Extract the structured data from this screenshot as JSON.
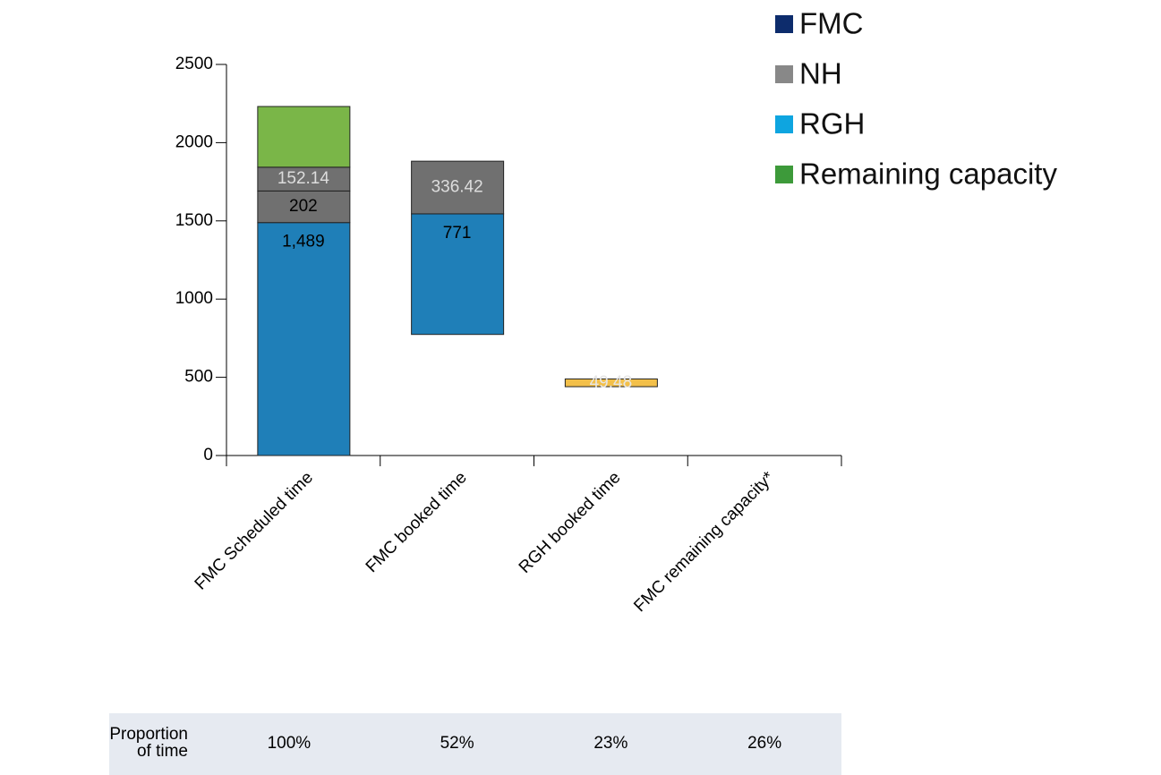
{
  "chart_data": {
    "type": "floating_stacked_bar",
    "categories": [
      "FMC Scheduled time",
      "FMC booked time",
      "RGH booked time",
      "FMC remaining capacity*"
    ],
    "base": [
      0,
      774,
      440,
      0
    ],
    "series": [
      {
        "color": "#1f7fb8",
        "label_color": "#000000",
        "values": [
          1489,
          771,
          null,
          null
        ],
        "value_labels": [
          "1,489",
          "771",
          null,
          null
        ]
      },
      {
        "color": "#707070",
        "label_color": "#000000",
        "values": [
          202,
          null,
          null,
          null
        ]
      },
      {
        "color": "#707070",
        "label_color": "#dddddd",
        "values": [
          152.14,
          336.42,
          null,
          null
        ]
      },
      {
        "color": "#7ab648",
        "values": [
          388,
          null,
          null,
          null
        ]
      },
      {
        "color": "#f3c04a",
        "label_color": "#e6e6e6",
        "values": [
          null,
          null,
          49.48,
          null
        ]
      }
    ],
    "ylim": [
      0,
      2500
    ],
    "yticks": [
      0,
      500,
      1000,
      1500,
      2000,
      2500
    ],
    "legend": [
      {
        "label": "FMC",
        "color": "#0d2c6c"
      },
      {
        "label": "NH",
        "color": "#888888"
      },
      {
        "label": "RGH",
        "color": "#0ea5e0"
      },
      {
        "label": "Remaining capacity",
        "color": "#3d9a3a"
      }
    ]
  },
  "table": {
    "row_label": "Proportion of time",
    "cells": [
      "100%",
      "52%",
      "23%",
      "26%"
    ]
  }
}
